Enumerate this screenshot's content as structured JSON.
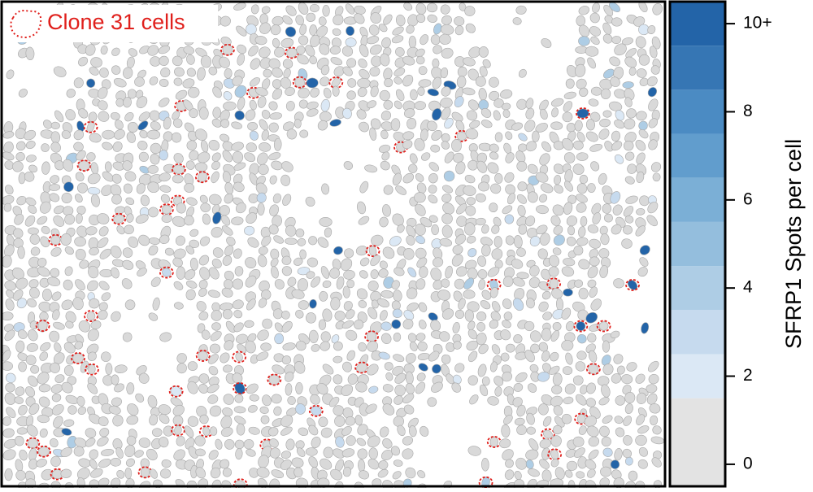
{
  "legend": {
    "label": "Clone 31 cells"
  },
  "colorbar": {
    "label": "SFRP1 Spots per cell",
    "ylim": [
      -0.5,
      10.5
    ],
    "yticks": [
      0,
      2,
      4,
      6,
      8,
      {
        "value": 10,
        "label": "10+"
      }
    ],
    "bands": [
      {
        "from": -0.5,
        "to": 1.5,
        "color": "#e3e3e3"
      },
      {
        "from": 1.5,
        "to": 2.5,
        "color": "#dbe8f5"
      },
      {
        "from": 2.5,
        "to": 3.5,
        "color": "#c6daee"
      },
      {
        "from": 3.5,
        "to": 4.5,
        "color": "#aecde5"
      },
      {
        "from": 4.5,
        "to": 5.5,
        "color": "#94bedd"
      },
      {
        "from": 5.5,
        "to": 6.5,
        "color": "#7bafd6"
      },
      {
        "from": 6.5,
        "to": 7.5,
        "color": "#619dcd"
      },
      {
        "from": 7.5,
        "to": 8.5,
        "color": "#4b8bc3"
      },
      {
        "from": 8.5,
        "to": 9.5,
        "color": "#3676b4"
      },
      {
        "from": 9.5,
        "to": 10.5,
        "color": "#2364a8"
      }
    ]
  }
}
